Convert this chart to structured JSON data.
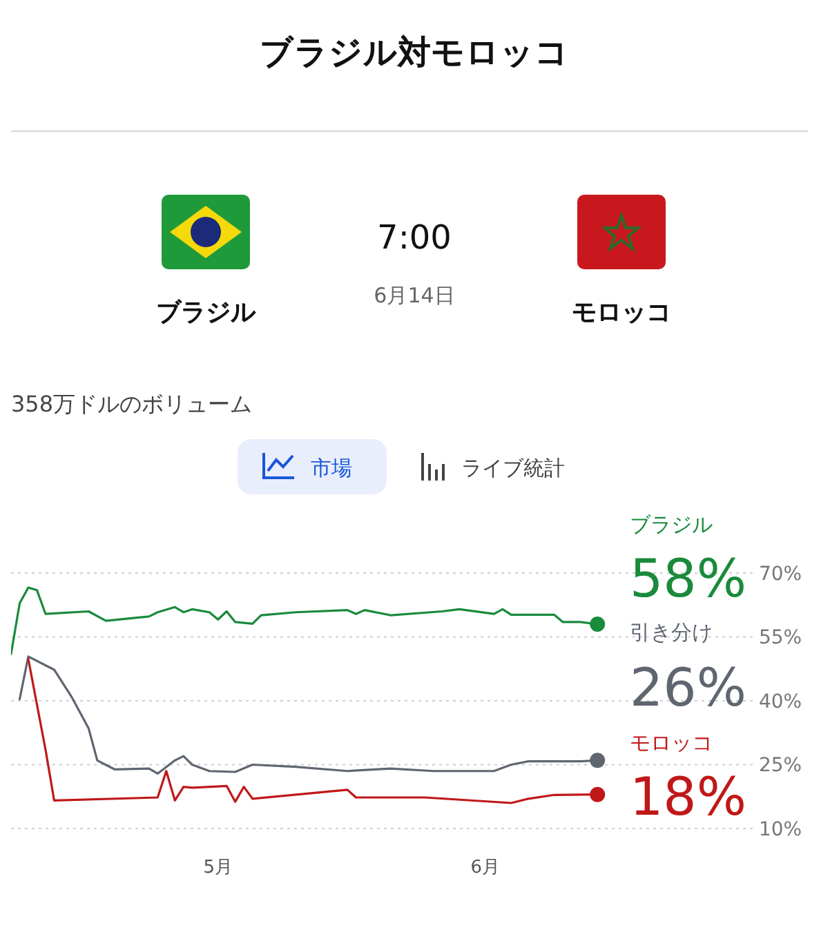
{
  "chart_data": {
    "type": "line",
    "title": "ブラジル対モロッコ",
    "annotations": [
      "7:00",
      "6月14日",
      "ブラジル",
      "モロッコ",
      "358万ドルのボリューム",
      "市場",
      "ライブ統計"
    ],
    "xlim": [
      "--04-07",
      "--07-02"
    ],
    "xticks": [
      {
        "value": "--05-01",
        "label": "5月"
      },
      {
        "value": "--06-01",
        "label": "6月"
      }
    ],
    "ylim": [
      10,
      70
    ],
    "yticks": [
      {
        "value": 10,
        "label": "10%"
      },
      {
        "value": 25,
        "label": "25%"
      },
      {
        "value": 40,
        "label": "40%"
      },
      {
        "value": 55,
        "label": "55%"
      },
      {
        "value": 70,
        "label": "70%"
      }
    ],
    "grid": "y",
    "series": [
      {
        "name": "ブラジル",
        "color": "#1a8a3c",
        "x": [
          "--04-07",
          "--04-08",
          "--04-09",
          "--04-10",
          "--04-11",
          "--04-16",
          "--04-18",
          "--04-23",
          "--04-24",
          "--04-26",
          "--04-27",
          "--04-28",
          "--04-30",
          "--05-01",
          "--05-02",
          "--05-03",
          "--05-05",
          "--05-06",
          "--05-10",
          "--05-16",
          "--05-17",
          "--05-18",
          "--05-21",
          "--05-27",
          "--05-29",
          "--06-02",
          "--06-03",
          "--06-04",
          "--06-09",
          "--06-10",
          "--06-12",
          "--06-14"
        ],
        "values": [
          51,
          62.9,
          66.6,
          66,
          60.4,
          61,
          58.8,
          59.8,
          60.8,
          62,
          60.8,
          61.5,
          60.8,
          59.1,
          61,
          58.5,
          58.1,
          60.1,
          60.8,
          61.3,
          60.4,
          61.3,
          60.1,
          61,
          61.5,
          60.4,
          61.5,
          60.2,
          60.2,
          58.5,
          58.5,
          58
        ],
        "value_labels": [
          null,
          null,
          null,
          null,
          null,
          null,
          null,
          null,
          null,
          null,
          null,
          null,
          null,
          null,
          null,
          null,
          null,
          null,
          null,
          null,
          null,
          null,
          null,
          null,
          null,
          null,
          null,
          null,
          null,
          null,
          null,
          "58%"
        ]
      },
      {
        "name": "引き分け",
        "color": "#5f6670",
        "x": [
          "--04-08",
          "--04-09",
          "--04-12",
          "--04-14",
          "--04-16",
          "--04-17",
          "--04-19",
          "--04-23",
          "--04-24",
          "--04-26",
          "--04-27",
          "--04-28",
          "--04-30",
          "--05-03",
          "--05-05",
          "--05-10",
          "--05-16",
          "--05-21",
          "--05-26",
          "--06-02",
          "--06-04",
          "--06-06",
          "--06-12",
          "--06-14"
        ],
        "values": [
          40.4,
          50.4,
          47.3,
          41,
          33.5,
          26,
          23.9,
          24.1,
          22.9,
          26,
          27,
          25,
          23.5,
          23.3,
          25,
          24.5,
          23.5,
          24.1,
          23.5,
          23.5,
          25,
          25.8,
          25.8,
          26
        ],
        "value_labels": [
          null,
          null,
          null,
          null,
          null,
          null,
          null,
          null,
          null,
          null,
          null,
          null,
          null,
          null,
          null,
          null,
          null,
          null,
          null,
          null,
          null,
          null,
          null,
          "26%"
        ]
      },
      {
        "name": "モロッコ",
        "color": "#c01818",
        "x": [
          "--04-09",
          "--04-11",
          "--04-12",
          "--04-24",
          "--04-25",
          "--04-26",
          "--04-27",
          "--04-28",
          "--05-02",
          "--05-03",
          "--05-04",
          "--05-05",
          "--05-16",
          "--05-17",
          "--05-25",
          "--06-04",
          "--06-06",
          "--06-09",
          "--06-14"
        ],
        "values": [
          49.8,
          28.5,
          16.6,
          17.3,
          23.5,
          16.6,
          19.8,
          19.6,
          20,
          16.3,
          19.8,
          17,
          19.1,
          17.3,
          17.3,
          16,
          17,
          17.9,
          18
        ],
        "value_labels": [
          null,
          null,
          null,
          null,
          null,
          null,
          null,
          null,
          null,
          null,
          null,
          null,
          null,
          null,
          null,
          null,
          null,
          null,
          "18%"
        ]
      }
    ]
  }
}
